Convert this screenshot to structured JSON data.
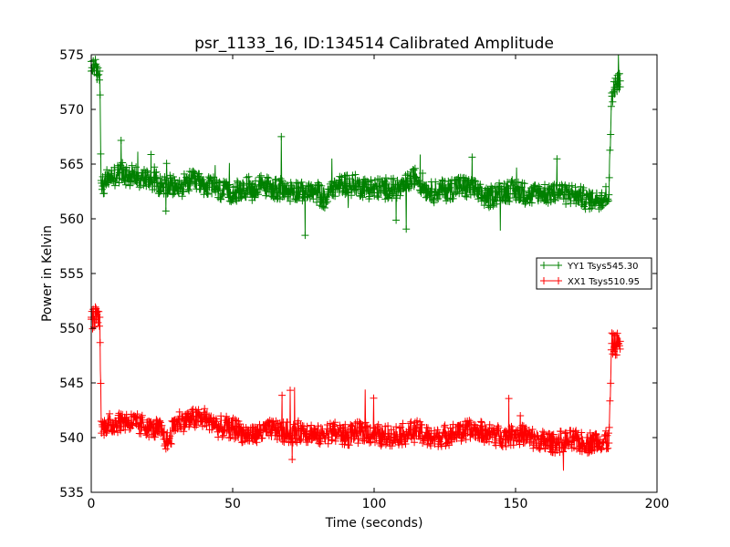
{
  "chart_data": {
    "type": "line",
    "title": "psr_1133_16, ID:134514 Calibrated Amplitude",
    "xlabel": "Time (seconds)",
    "ylabel": "Power in Kelvin",
    "xlim": [
      0,
      200
    ],
    "ylim": [
      535,
      575
    ],
    "xticks": [
      "0",
      "50",
      "100",
      "150",
      "200"
    ],
    "yticks": [
      "535",
      "540",
      "545",
      "550",
      "555",
      "560",
      "565",
      "570",
      "575"
    ],
    "grid": false,
    "legend_position": "right",
    "marker": "+",
    "series": [
      {
        "name": "YY1 Tsys545.30",
        "color": "#008000",
        "x": [
          0,
          1,
          2,
          3,
          3.5,
          4,
          5,
          7,
          10,
          13,
          16,
          20,
          25,
          30,
          35,
          40,
          45,
          50,
          55,
          56,
          57,
          60,
          65,
          70,
          75,
          80,
          83,
          85,
          90,
          95,
          100,
          105,
          110,
          115,
          120,
          125,
          130,
          135,
          140,
          145,
          150,
          155,
          160,
          165,
          170,
          175,
          180,
          183,
          184,
          185,
          186,
          187
        ],
        "values": [
          573.5,
          574,
          573.2,
          573.5,
          563.5,
          563,
          563.4,
          563.8,
          564.2,
          564,
          563.9,
          563.6,
          563.2,
          562.8,
          563.4,
          563.2,
          562.6,
          562.3,
          562.8,
          563.2,
          562.6,
          563,
          562.8,
          562.5,
          562.6,
          562.4,
          561.8,
          562.7,
          563.2,
          563,
          562.7,
          562.8,
          562.8,
          563.8,
          562.4,
          562.6,
          563,
          562.7,
          561.9,
          562.5,
          562.6,
          562.2,
          562.3,
          562.4,
          562.2,
          561.8,
          561.9,
          562.2,
          571.5,
          572,
          572.3,
          572.6
        ]
      },
      {
        "name": "XX1 Tsys510.95",
        "color": "#ff0000",
        "x": [
          0,
          1,
          2,
          3,
          3.5,
          4,
          5,
          7,
          10,
          13,
          16,
          20,
          25,
          27,
          30,
          35,
          40,
          45,
          50,
          55,
          60,
          65,
          70,
          75,
          80,
          85,
          90,
          95,
          100,
          105,
          110,
          115,
          120,
          125,
          130,
          135,
          140,
          145,
          150,
          155,
          160,
          165,
          170,
          175,
          180,
          183,
          184,
          185,
          186,
          187
        ],
        "values": [
          551,
          550.8,
          551.3,
          551,
          541.5,
          541,
          541.3,
          541.2,
          541.5,
          541.4,
          541.2,
          541,
          540.5,
          539.5,
          541.5,
          541.6,
          541.8,
          541,
          540.9,
          540.2,
          540.5,
          540.7,
          540.4,
          540.6,
          540.2,
          540.5,
          540.2,
          540.5,
          540.3,
          540.1,
          540.3,
          540.6,
          540,
          540.2,
          540.5,
          540.6,
          540.4,
          540.1,
          540.3,
          540,
          539.6,
          539.6,
          539.7,
          539.5,
          539.8,
          539.5,
          548.6,
          548.4,
          548.6,
          548.8
        ]
      }
    ]
  }
}
